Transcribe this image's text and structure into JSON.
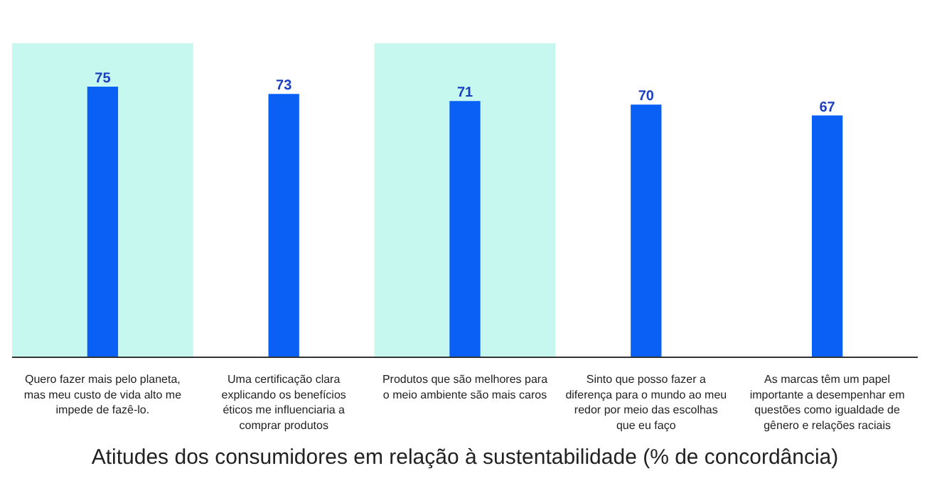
{
  "chart_data": {
    "type": "bar",
    "title": "Atitudes dos consumidores em relação à sustentabilidade (% de concordância)",
    "categories": [
      "Quero fazer mais pelo planeta, mas meu custo de vida alto me impede de fazê-lo.",
      "Uma certificação clara explicando os benefícios éticos me influenciaria a comprar produtos",
      "Produtos que são melhores para o meio ambiente são mais caros",
      "Sinto que posso fazer a diferença para o mundo ao meu redor por meio das escolhas que eu faço",
      "As marcas têm um papel importante a desempenhar em questões como igualdade de gênero e relações raciais"
    ],
    "values": [
      75,
      73,
      71,
      70,
      67
    ],
    "color": "#0a5ff5",
    "data_labels": true,
    "ylim": [
      0,
      87
    ],
    "tick_labels": "x",
    "grid": false,
    "bands": [
      {
        "axis": "x",
        "from": "Quero fazer mais pelo planeta, mas meu custo de vida alto me impede de fazê-lo.",
        "to": "Quero fazer mais pelo planeta, mas meu custo de vida alto me impede de fazê-lo.",
        "color": "#c6f8ef"
      },
      {
        "axis": "x",
        "from": "Produtos que são melhores para o meio ambiente são mais caros",
        "to": "Produtos que são melhores para o meio ambiente são mais caros",
        "color": "#c6f8ef"
      }
    ]
  }
}
